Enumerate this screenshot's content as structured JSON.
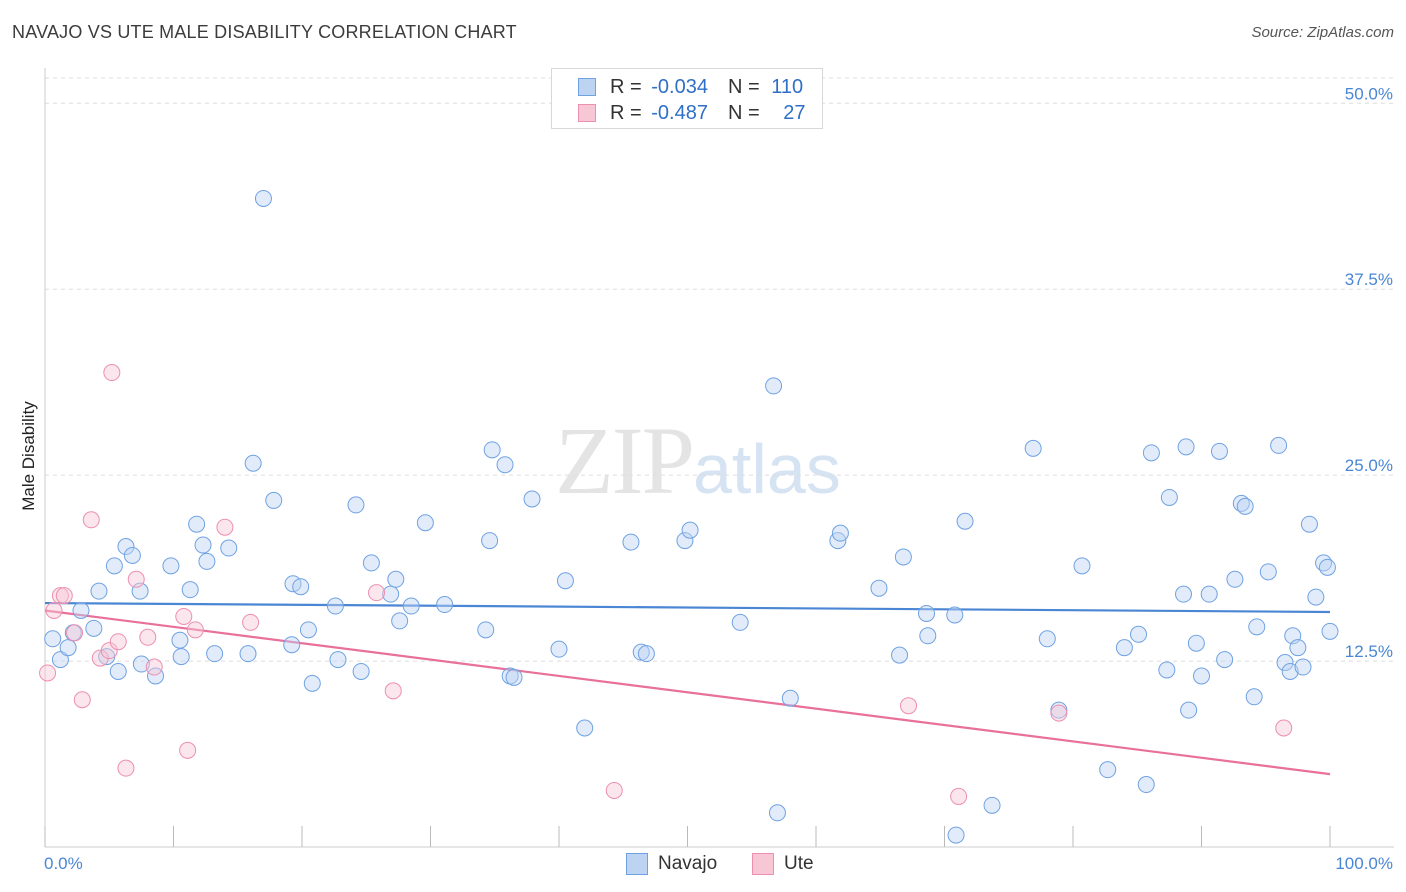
{
  "title": "NAVAJO VS UTE MALE DISABILITY CORRELATION CHART",
  "source": "Source: ZipAtlas.com",
  "watermark": {
    "zip": "ZIP",
    "atlas": "atlas"
  },
  "legend": {
    "rows": [
      {
        "r_label": "R = ",
        "r_value": "-0.034",
        "n_label": "N = ",
        "n_value": "110",
        "color": "#6fa2e3",
        "fill": "#bcd3f2"
      },
      {
        "r_label": "R = ",
        "r_value": "-0.487",
        "n_label": "N = ",
        "n_value": "27",
        "color": "#ec8fb0",
        "fill": "#f7c7d6"
      }
    ]
  },
  "bottom_legend": [
    {
      "label": "Navajo",
      "color": "#6fa2e3",
      "fill": "#bcd3f2"
    },
    {
      "label": "Ute",
      "color": "#ec8fb0",
      "fill": "#f7c7d6"
    }
  ],
  "chart_data": {
    "type": "scatter",
    "title": "NAVAJO VS UTE MALE DISABILITY CORRELATION CHART",
    "xlabel": "",
    "ylabel": "Male Disability",
    "xlim": [
      0,
      100
    ],
    "ylim": [
      0,
      50
    ],
    "x_tick_labels": [
      "0.0%",
      "100.0%"
    ],
    "y_ticks": [
      12.5,
      25.0,
      37.5,
      50.0
    ],
    "y_tick_labels": [
      "12.5%",
      "25.0%",
      "37.5%",
      "50.0%"
    ],
    "grid": true,
    "legend_position": "top-center",
    "series": [
      {
        "name": "Navajo",
        "color": "#4a86d4",
        "trend": {
          "x": [
            0,
            100
          ],
          "y": [
            16.4,
            15.8
          ]
        },
        "points": [
          [
            0.6,
            14.0
          ],
          [
            1.2,
            12.6
          ],
          [
            1.8,
            13.4
          ],
          [
            2.2,
            14.4
          ],
          [
            2.8,
            15.9
          ],
          [
            3.8,
            14.7
          ],
          [
            4.2,
            17.2
          ],
          [
            4.8,
            12.8
          ],
          [
            5.4,
            18.9
          ],
          [
            5.7,
            11.8
          ],
          [
            6.3,
            20.2
          ],
          [
            6.8,
            19.6
          ],
          [
            7.4,
            17.2
          ],
          [
            7.5,
            12.3
          ],
          [
            8.6,
            11.5
          ],
          [
            9.8,
            18.9
          ],
          [
            10.5,
            13.9
          ],
          [
            10.6,
            12.8
          ],
          [
            11.3,
            17.3
          ],
          [
            11.8,
            21.7
          ],
          [
            12.3,
            20.3
          ],
          [
            12.6,
            19.2
          ],
          [
            13.2,
            13.0
          ],
          [
            14.3,
            20.1
          ],
          [
            15.8,
            13.0
          ],
          [
            16.2,
            25.8
          ],
          [
            17.0,
            43.6
          ],
          [
            17.8,
            23.3
          ],
          [
            19.2,
            13.6
          ],
          [
            19.3,
            17.7
          ],
          [
            19.9,
            17.5
          ],
          [
            20.5,
            14.6
          ],
          [
            20.8,
            11.0
          ],
          [
            22.6,
            16.2
          ],
          [
            22.8,
            12.6
          ],
          [
            24.2,
            23.0
          ],
          [
            24.6,
            11.8
          ],
          [
            25.4,
            19.1
          ],
          [
            26.9,
            17.0
          ],
          [
            27.3,
            18.0
          ],
          [
            27.6,
            15.2
          ],
          [
            28.5,
            16.2
          ],
          [
            29.6,
            21.8
          ],
          [
            31.1,
            16.3
          ],
          [
            34.3,
            14.6
          ],
          [
            34.6,
            20.6
          ],
          [
            34.8,
            26.7
          ],
          [
            35.8,
            25.7
          ],
          [
            36.2,
            11.5
          ],
          [
            36.5,
            11.4
          ],
          [
            37.9,
            23.4
          ],
          [
            40.0,
            13.3
          ],
          [
            40.5,
            17.9
          ],
          [
            45.6,
            20.5
          ],
          [
            46.4,
            13.1
          ],
          [
            46.8,
            13.0
          ],
          [
            49.8,
            20.6
          ],
          [
            50.2,
            21.3
          ],
          [
            54.1,
            15.1
          ],
          [
            56.7,
            31.0
          ],
          [
            57.0,
            2.3
          ],
          [
            61.7,
            20.6
          ],
          [
            61.9,
            21.1
          ],
          [
            64.9,
            17.4
          ],
          [
            66.5,
            12.9
          ],
          [
            66.8,
            19.5
          ],
          [
            68.6,
            15.7
          ],
          [
            68.7,
            14.2
          ],
          [
            70.8,
            15.6
          ],
          [
            70.9,
            0.8
          ],
          [
            71.6,
            21.9
          ],
          [
            73.7,
            2.8
          ],
          [
            76.9,
            26.8
          ],
          [
            78.0,
            14.0
          ],
          [
            78.9,
            9.2
          ],
          [
            80.7,
            18.9
          ],
          [
            82.7,
            5.2
          ],
          [
            84.0,
            13.4
          ],
          [
            85.1,
            14.3
          ],
          [
            85.7,
            4.2
          ],
          [
            86.1,
            26.5
          ],
          [
            87.3,
            11.9
          ],
          [
            87.5,
            23.5
          ],
          [
            88.6,
            17.0
          ],
          [
            88.8,
            26.9
          ],
          [
            89.0,
            9.2
          ],
          [
            89.6,
            13.7
          ],
          [
            90.0,
            11.5
          ],
          [
            90.6,
            17.0
          ],
          [
            91.4,
            26.6
          ],
          [
            91.8,
            12.6
          ],
          [
            92.6,
            18.0
          ],
          [
            93.1,
            23.1
          ],
          [
            93.4,
            22.9
          ],
          [
            94.1,
            10.1
          ],
          [
            94.3,
            14.8
          ],
          [
            95.2,
            18.5
          ],
          [
            96.0,
            27.0
          ],
          [
            96.5,
            12.4
          ],
          [
            96.9,
            11.8
          ],
          [
            97.1,
            14.2
          ],
          [
            97.5,
            13.4
          ],
          [
            97.9,
            12.1
          ],
          [
            98.4,
            21.7
          ],
          [
            98.9,
            16.8
          ],
          [
            99.5,
            19.1
          ],
          [
            99.8,
            18.8
          ],
          [
            100.0,
            14.5
          ],
          [
            42.0,
            8.0
          ],
          [
            58.0,
            10.0
          ]
        ]
      },
      {
        "name": "Ute",
        "color": "#e8709b",
        "trend": {
          "x": [
            0,
            100
          ],
          "y": [
            15.9,
            4.9
          ]
        },
        "points": [
          [
            0.2,
            11.7
          ],
          [
            0.7,
            15.9
          ],
          [
            1.2,
            16.9
          ],
          [
            1.5,
            16.9
          ],
          [
            2.3,
            14.4
          ],
          [
            2.9,
            9.9
          ],
          [
            3.6,
            22.0
          ],
          [
            4.3,
            12.7
          ],
          [
            5.0,
            13.2
          ],
          [
            5.2,
            31.9
          ],
          [
            5.7,
            13.8
          ],
          [
            6.3,
            5.3
          ],
          [
            7.1,
            18.0
          ],
          [
            8.0,
            14.1
          ],
          [
            8.5,
            12.1
          ],
          [
            10.8,
            15.5
          ],
          [
            11.1,
            6.5
          ],
          [
            11.7,
            14.6
          ],
          [
            14.0,
            21.5
          ],
          [
            16.0,
            15.1
          ],
          [
            25.8,
            17.1
          ],
          [
            27.1,
            10.5
          ],
          [
            44.3,
            3.8
          ],
          [
            67.2,
            9.5
          ],
          [
            71.1,
            3.4
          ],
          [
            78.9,
            9.0
          ],
          [
            96.4,
            8.0
          ]
        ]
      }
    ]
  }
}
